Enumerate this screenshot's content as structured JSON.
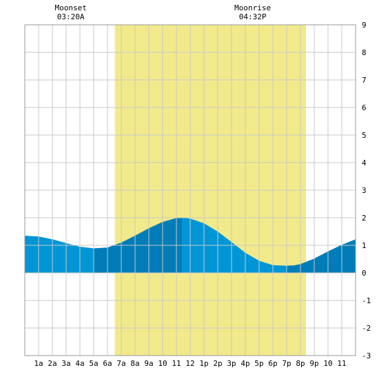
{
  "moon_events": [
    {
      "label": "Moonset",
      "time": "03:20A",
      "hour": 3.333
    },
    {
      "label": "Moonrise",
      "time": "04:32P",
      "hour": 16.533
    }
  ],
  "chart_data": {
    "type": "area",
    "title": "",
    "xlabel": "",
    "ylabel": "",
    "xlim": [
      0,
      24
    ],
    "ylim": [
      -3,
      9
    ],
    "grid": true,
    "x_tick_labels": [
      "1a",
      "2a",
      "3a",
      "4a",
      "5a",
      "6a",
      "7a",
      "8a",
      "9a",
      "10",
      "11",
      "12",
      "1p",
      "2p",
      "3p",
      "4p",
      "5p",
      "6p",
      "7p",
      "8p",
      "9p",
      "10",
      "11"
    ],
    "y_ticks": [
      -3,
      -2,
      -1,
      0,
      1,
      2,
      3,
      4,
      5,
      6,
      7,
      8,
      9
    ],
    "daylight": {
      "start": 6.53,
      "end": 20.4,
      "color": "#f2ea8a"
    },
    "colors": {
      "tide_light": "#0096d6",
      "tide_dark": "#007db8",
      "grid": "#c8c8c8"
    },
    "series": [
      {
        "x": [
          0,
          1,
          2,
          3,
          4,
          5,
          6,
          7,
          8,
          9,
          10,
          11,
          11.5,
          12,
          13,
          14,
          15,
          16,
          17,
          18,
          19,
          19.5,
          20,
          21,
          22,
          23,
          24
        ],
        "y": [
          1.35,
          1.32,
          1.22,
          1.08,
          0.95,
          0.89,
          0.92,
          1.1,
          1.35,
          1.62,
          1.85,
          1.99,
          2.0,
          1.97,
          1.8,
          1.5,
          1.12,
          0.73,
          0.44,
          0.28,
          0.26,
          0.27,
          0.32,
          0.52,
          0.78,
          1.02,
          1.22
        ]
      }
    ],
    "tide_phases": [
      {
        "start": 0,
        "end": 5.0,
        "shade": "light"
      },
      {
        "start": 5.0,
        "end": 11.4,
        "shade": "dark"
      },
      {
        "start": 11.4,
        "end": 19.0,
        "shade": "light"
      },
      {
        "start": 19.0,
        "end": 24,
        "shade": "dark"
      }
    ]
  }
}
